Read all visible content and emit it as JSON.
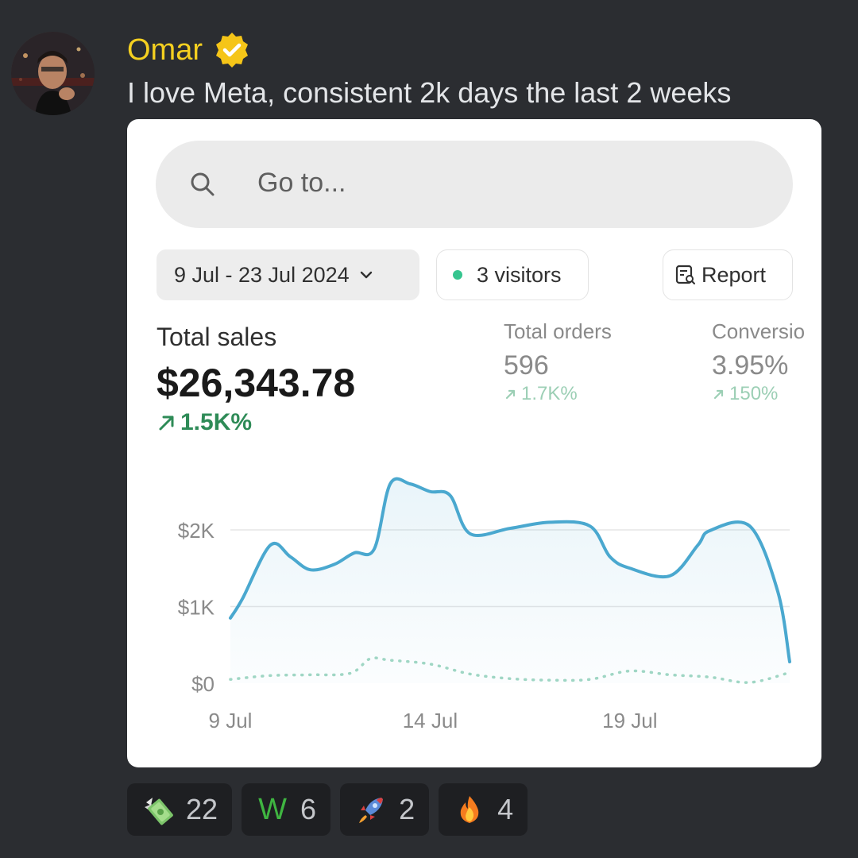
{
  "post": {
    "author": "Omar",
    "message": "I love Meta, consistent 2k days the last 2 weeks"
  },
  "dashboard": {
    "search_placeholder": "Go to...",
    "date_range": "9 Jul - 23 Jul 2024",
    "visitors": "3 visitors",
    "report": "Report",
    "metrics": [
      {
        "label": "Total sales",
        "value": "$26,343.78",
        "delta": "1.5K%"
      },
      {
        "label": "Total orders",
        "value": "596",
        "delta": "1.7K%"
      },
      {
        "label": "Conversio",
        "value": "3.95%",
        "delta": "150%"
      }
    ]
  },
  "chart_data": {
    "type": "line",
    "title": "",
    "xlabel": "",
    "ylabel": "",
    "ylim": [
      0,
      2000
    ],
    "y_ticks": [
      {
        "value": 0,
        "label": "$0"
      },
      {
        "value": 1000,
        "label": "$1K"
      },
      {
        "value": 2000,
        "label": "$2K"
      }
    ],
    "x_ticks": [
      {
        "x": 0,
        "label": "9 Jul"
      },
      {
        "x": 5,
        "label": "14 Jul"
      },
      {
        "x": 10,
        "label": "19 Jul"
      }
    ],
    "x_range": [
      0,
      14
    ],
    "grid": true,
    "accent": "#4aa8cf",
    "series": [
      {
        "style": "solid",
        "x": [
          0,
          0.3,
          1,
          1.5,
          2,
          2.6,
          3.1,
          3.6,
          4,
          4.5,
          5,
          5.5,
          6,
          7,
          8,
          9,
          9.5,
          10,
          11,
          11.7,
          12,
          13,
          13.7,
          14
        ],
        "y": [
          850,
          1100,
          1800,
          1650,
          1480,
          1550,
          1700,
          1750,
          2600,
          2600,
          2500,
          2450,
          1950,
          2020,
          2100,
          2050,
          1650,
          1500,
          1400,
          1800,
          1990,
          2050,
          1200,
          280
        ]
      },
      {
        "style": "dotted",
        "x": [
          0,
          1,
          2,
          3,
          3.5,
          4,
          5,
          6,
          7,
          8,
          9,
          10,
          11,
          12,
          13,
          14
        ],
        "y": [
          50,
          100,
          110,
          130,
          320,
          300,
          250,
          120,
          60,
          40,
          50,
          160,
          110,
          80,
          10,
          140
        ]
      }
    ]
  },
  "reactions": [
    {
      "emoji": "money-wings",
      "count": "22"
    },
    {
      "emoji": "W",
      "count": "6"
    },
    {
      "emoji": "rocket",
      "count": "2"
    },
    {
      "emoji": "fire",
      "count": "4"
    }
  ],
  "colors": {
    "background": "#2b2d31",
    "author": "#f5d020",
    "verified": "#f5c518",
    "delta_green": "#2e8b57",
    "line": "#4aa8cf",
    "dotted": "#9fd6c4"
  }
}
